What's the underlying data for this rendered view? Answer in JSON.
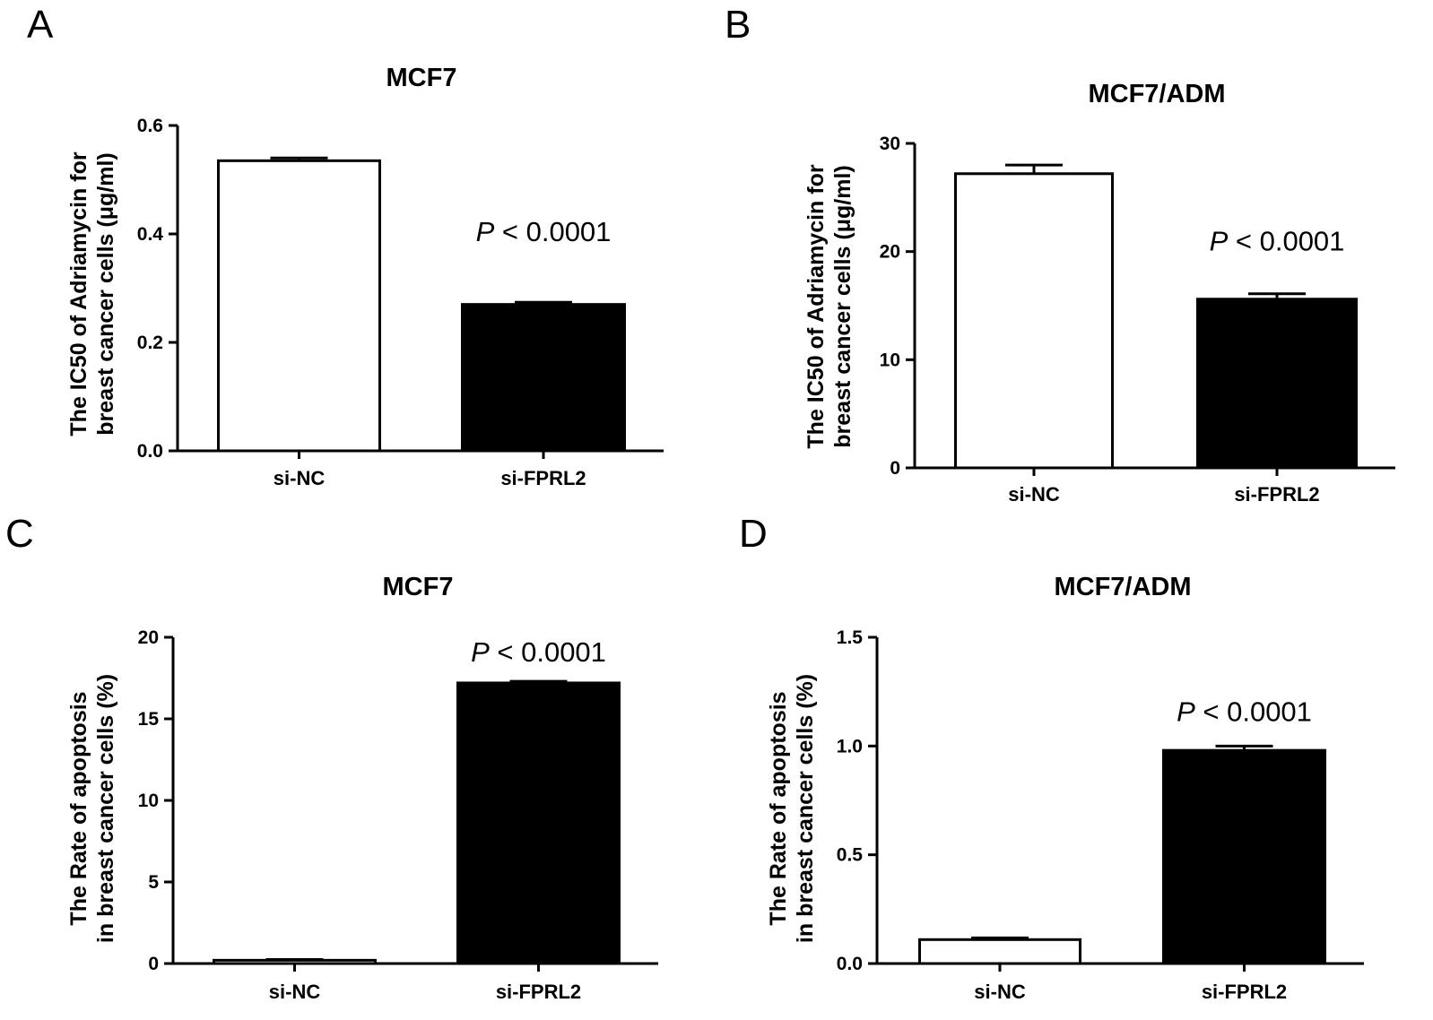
{
  "chart_data": [
    {
      "panel": "A",
      "type": "bar",
      "title": "MCF7",
      "ylabel_line1": "The IC50 of Adriamycin for",
      "ylabel_line2": "breast cancer cells (μg/ml)",
      "categories": [
        "si-NC",
        "si-FPRL2"
      ],
      "values": [
        0.535,
        0.27
      ],
      "errors": [
        0.005,
        0.004
      ],
      "bar_fills": [
        "#ffffff",
        "#000000"
      ],
      "ylim": [
        0,
        0.6
      ],
      "yticks": [
        0.0,
        0.2,
        0.4,
        0.6
      ],
      "ytick_labels": [
        "0.0",
        "0.2",
        "0.4",
        "0.6"
      ],
      "annotation": {
        "p_symbol": "P",
        "text": " < 0.0001",
        "bar_index": 1
      }
    },
    {
      "panel": "B",
      "type": "bar",
      "title": "MCF7/ADM",
      "ylabel_line1": "The IC50 of Adriamycin for",
      "ylabel_line2": "breast cancer cells (μg/ml)",
      "categories": [
        "si-NC",
        "si-FPRL2"
      ],
      "values": [
        27.2,
        15.6
      ],
      "errors": [
        0.8,
        0.5
      ],
      "bar_fills": [
        "#ffffff",
        "#000000"
      ],
      "ylim": [
        0,
        30
      ],
      "yticks": [
        0,
        10,
        20,
        30
      ],
      "ytick_labels": [
        "0",
        "10",
        "20",
        "30"
      ],
      "annotation": {
        "p_symbol": "P",
        "text": " < 0.0001",
        "bar_index": 1
      }
    },
    {
      "panel": "C",
      "type": "bar",
      "title": "MCF7",
      "ylabel_line1": "The Rate of apoptosis",
      "ylabel_line2": "in breast cancer cells (%)",
      "categories": [
        "si-NC",
        "si-FPRL2"
      ],
      "values": [
        0.2,
        17.2
      ],
      "errors": [
        0.05,
        0.1
      ],
      "bar_fills": [
        "#ffffff",
        "#000000"
      ],
      "ylim": [
        0,
        20
      ],
      "yticks": [
        0,
        5,
        10,
        15,
        20
      ],
      "ytick_labels": [
        "0",
        "5",
        "10",
        "15",
        "20"
      ],
      "annotation": {
        "p_symbol": "P",
        "text": " < 0.0001",
        "bar_index": 1
      }
    },
    {
      "panel": "D",
      "type": "bar",
      "title": "MCF7/ADM",
      "ylabel_line1": "The Rate of apoptosis",
      "ylabel_line2": "in breast cancer cells (%)",
      "categories": [
        "si-NC",
        "si-FPRL2"
      ],
      "values": [
        0.11,
        0.98
      ],
      "errors": [
        0.008,
        0.02
      ],
      "bar_fills": [
        "#ffffff",
        "#000000"
      ],
      "ylim": [
        0,
        1.5
      ],
      "yticks": [
        0.0,
        0.5,
        1.0,
        1.5
      ],
      "ytick_labels": [
        "0.0",
        "0.5",
        "1.0",
        "1.5"
      ],
      "annotation": {
        "p_symbol": "P",
        "text": " < 0.0001",
        "bar_index": 1
      }
    }
  ]
}
